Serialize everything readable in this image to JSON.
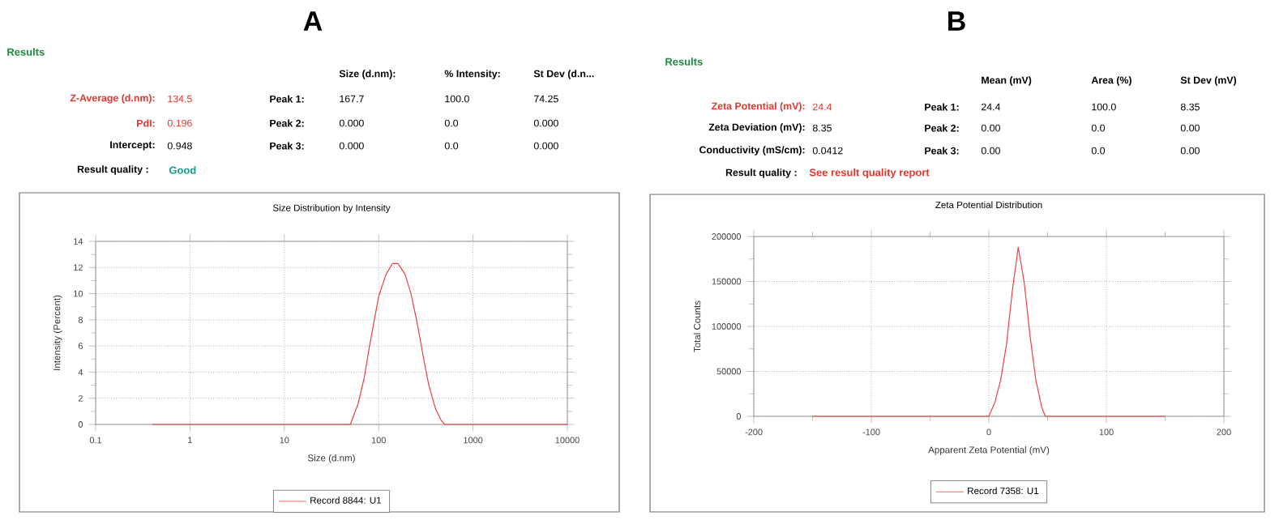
{
  "chart_data": [
    {
      "type": "line",
      "title": "Size Distribution by Intensity",
      "xlabel": "Size (d.nm)",
      "ylabel": "Intensity (Percent)",
      "log": "x",
      "xlim": [
        0.1,
        10000
      ],
      "xticks": [
        0.1,
        1,
        10,
        100,
        1000,
        10000
      ],
      "ylim": [
        0,
        14
      ],
      "yticks": [
        0,
        2,
        4,
        6,
        8,
        10,
        12,
        14
      ],
      "grid": true,
      "legend": "bottom",
      "series": [
        {
          "name": "Record 8844: U1",
          "color": "#f04040",
          "x": [
            0.4,
            1,
            10,
            40,
            50,
            60,
            70,
            80,
            90,
            100,
            120,
            140,
            160,
            190,
            220,
            260,
            300,
            340,
            400,
            460,
            500,
            1000,
            10000
          ],
          "values": [
            0,
            0,
            0,
            0,
            0,
            1.5,
            3.5,
            6,
            8,
            9.8,
            11.5,
            12.3,
            12.3,
            11.5,
            10,
            7.5,
            5,
            3,
            1.2,
            0.3,
            0,
            0,
            0
          ]
        }
      ],
      "annotations": [
        "A",
        "Results",
        "Size (d.nm):",
        "% Intensity:",
        "St Dev (d.n...",
        "Z-Average (d.nm):",
        "134.5",
        "Peak 1:",
        "167.7",
        "100.0",
        "74.25",
        "PdI:",
        "0.196",
        "Peak 2:",
        "0.000",
        "0.0",
        "0.000",
        "Intercept:",
        "0.948",
        "Peak 3:",
        "0.000",
        "0.0",
        "0.000",
        "Result quality :",
        "Good"
      ]
    },
    {
      "type": "line",
      "title": "Zeta Potential Distribution",
      "xlabel": "Apparent Zeta Potential (mV)",
      "ylabel": "Total Counts",
      "xlim": [
        -200,
        200
      ],
      "xticks": [
        -200,
        -100,
        0,
        100,
        200
      ],
      "ylim": [
        0,
        200000
      ],
      "yticks": [
        0,
        50000,
        100000,
        150000,
        200000
      ],
      "grid": true,
      "legend": "bottom",
      "series": [
        {
          "name": "Record 7358: U1",
          "color": "#f04040",
          "x": [
            -150,
            -100,
            -50,
            0,
            5,
            10,
            15,
            20,
            25,
            30,
            35,
            40,
            45,
            48,
            100,
            150
          ],
          "values": [
            0,
            0,
            0,
            0,
            15000,
            40000,
            80000,
            140000,
            188000,
            150000,
            90000,
            40000,
            10000,
            0,
            0,
            0
          ]
        }
      ],
      "annotations": [
        "B",
        "Results",
        "Mean (mV)",
        "Area (%)",
        "St Dev (mV)",
        "Zeta Potential (mV):",
        "24.4",
        "Peak 1:",
        "24.4",
        "100.0",
        "8.35",
        "Zeta Deviation (mV):",
        "8.35",
        "Peak 2:",
        "0.00",
        "0.0",
        "0.00",
        "Conductivity (mS/cm):",
        "0.0412",
        "Peak 3:",
        "0.00",
        "0.0",
        "0.00",
        "Result quality :",
        "See result quality report"
      ]
    }
  ]
}
